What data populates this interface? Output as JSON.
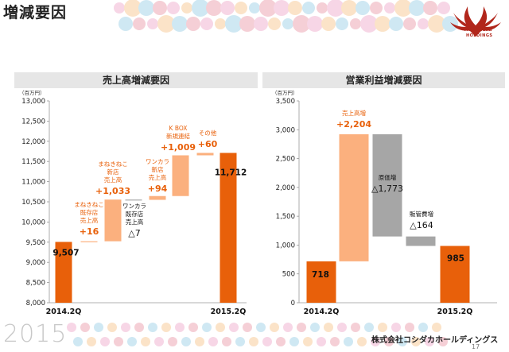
{
  "page": {
    "title": "増減要因",
    "year_mark": "2015",
    "company": "株式会社コシダカホールディングス",
    "page_number": "17"
  },
  "logo": {
    "brand": "Koshidaka",
    "sub": "HOLDINGS",
    "color": "#b1261b"
  },
  "colors": {
    "total_bar": "#e8600a",
    "increase_bar": "#fbb07e",
    "decrease_bar": "#a6a6a6",
    "increase_label": "#e8600a",
    "panel_header": "#e6e6e6"
  },
  "chart_data": [
    {
      "type": "bar",
      "subtype": "waterfall",
      "title": "売上高増減要因",
      "unit_label": "（百万円）",
      "ylim": [
        8000,
        13000
      ],
      "yticks": [
        "8,000",
        "8,500",
        "9,000",
        "9,500",
        "10,000",
        "10,500",
        "11,000",
        "11,500",
        "12,000",
        "12,500",
        "13,000"
      ],
      "categories": [
        "2014.2Q",
        "まねきねこ既存店売上高",
        "まねきねこ新店売上高",
        "ワンカラ既存店売上高",
        "ワンカラ新店売上高",
        "K BOX新規連結",
        "その他",
        "2015.2Q"
      ],
      "steps": [
        {
          "kind": "total",
          "value": 9507,
          "label": "9,507",
          "axis_label": "2014.2Q"
        },
        {
          "kind": "increase",
          "value": 16,
          "label": "+16",
          "caption": [
            "まねきねこ",
            "既存店",
            "売上高"
          ]
        },
        {
          "kind": "increase",
          "value": 1033,
          "label": "+1,033",
          "caption": [
            "まねきねこ",
            "新店",
            "売上高"
          ]
        },
        {
          "kind": "decrease",
          "value": -7,
          "label": "△7",
          "caption": [
            "ワンカラ",
            "既存店",
            "売上高"
          ]
        },
        {
          "kind": "increase",
          "value": 94,
          "label": "+94",
          "caption": [
            "ワンカラ",
            "新店",
            "売上高"
          ]
        },
        {
          "kind": "increase",
          "value": 1009,
          "label": "+1,009",
          "caption": [
            "K BOX",
            "新規連結"
          ]
        },
        {
          "kind": "increase",
          "value": 60,
          "label": "+60",
          "caption": [
            "その他"
          ]
        },
        {
          "kind": "total",
          "value": 11712,
          "label": "11,712",
          "axis_label": "2015.2Q"
        }
      ]
    },
    {
      "type": "bar",
      "subtype": "waterfall",
      "title": "営業利益増減要因",
      "unit_label": "（百万円）",
      "ylim": [
        0,
        3500
      ],
      "yticks": [
        "0",
        "500",
        "1,000",
        "1,500",
        "2,000",
        "2,500",
        "3,000",
        "3,500"
      ],
      "categories": [
        "2014.2Q",
        "売上高増",
        "原価増",
        "販管費増",
        "2015.2Q"
      ],
      "steps": [
        {
          "kind": "total",
          "value": 718,
          "label": "718",
          "axis_label": "2014.2Q"
        },
        {
          "kind": "increase",
          "value": 2204,
          "label": "+2,204",
          "caption": [
            "売上高増"
          ]
        },
        {
          "kind": "decrease",
          "value": -1773,
          "label": "△1,773",
          "caption": [
            "原価増"
          ]
        },
        {
          "kind": "decrease",
          "value": -164,
          "label": "△164",
          "caption": [
            "販管費増"
          ]
        },
        {
          "kind": "total",
          "value": 985,
          "label": "985",
          "axis_label": "2015.2Q"
        }
      ]
    }
  ]
}
